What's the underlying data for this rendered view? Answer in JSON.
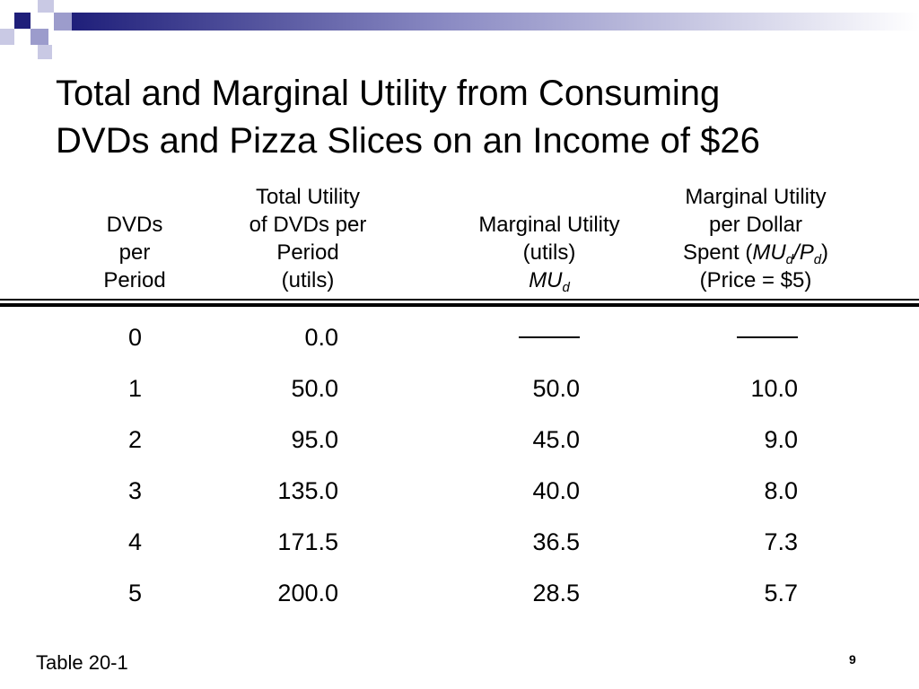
{
  "slide": {
    "title_lines": [
      "Total and Marginal Utility from Consuming",
      "DVDs and Pizza Slices on an Income of $26"
    ],
    "footer_label": "Table 20-1",
    "page_number": "9",
    "accent_colors": {
      "navy": "#1f1f7a",
      "periwinkle": "#9c9ccc",
      "lavender": "#c9c9e4"
    }
  },
  "table": {
    "headers": {
      "col1": [
        "DVDs",
        "per",
        "Period"
      ],
      "col2": [
        "Total Utility",
        "of DVDs per",
        "Period",
        "(utils)"
      ],
      "col3": {
        "line1": "Marginal Utility",
        "line2": "(utils)",
        "line3_italic": "MU",
        "line3_sub": "d"
      },
      "col4": {
        "line1": "Marginal Utility",
        "line2": "per Dollar",
        "line3_prefix": "Spent (",
        "line3_mu": "MU",
        "line3_mu_sub": "d",
        "line3_slash": "/",
        "line3_p": "P",
        "line3_p_sub": "d",
        "line3_suffix": ")",
        "line4": "(Price = $5)"
      }
    },
    "rows": [
      {
        "dvds": "0",
        "total_utility": "0.0",
        "marginal_utility": null,
        "mu_per_dollar": null
      },
      {
        "dvds": "1",
        "total_utility": "50.0",
        "marginal_utility": "50.0",
        "mu_per_dollar": "10.0"
      },
      {
        "dvds": "2",
        "total_utility": "95.0",
        "marginal_utility": "45.0",
        "mu_per_dollar": "9.0"
      },
      {
        "dvds": "3",
        "total_utility": "135.0",
        "marginal_utility": "40.0",
        "mu_per_dollar": "8.0"
      },
      {
        "dvds": "4",
        "total_utility": "171.5",
        "marginal_utility": "36.5",
        "mu_per_dollar": "7.3"
      },
      {
        "dvds": "5",
        "total_utility": "200.0",
        "marginal_utility": "28.5",
        "mu_per_dollar": "5.7"
      }
    ]
  }
}
